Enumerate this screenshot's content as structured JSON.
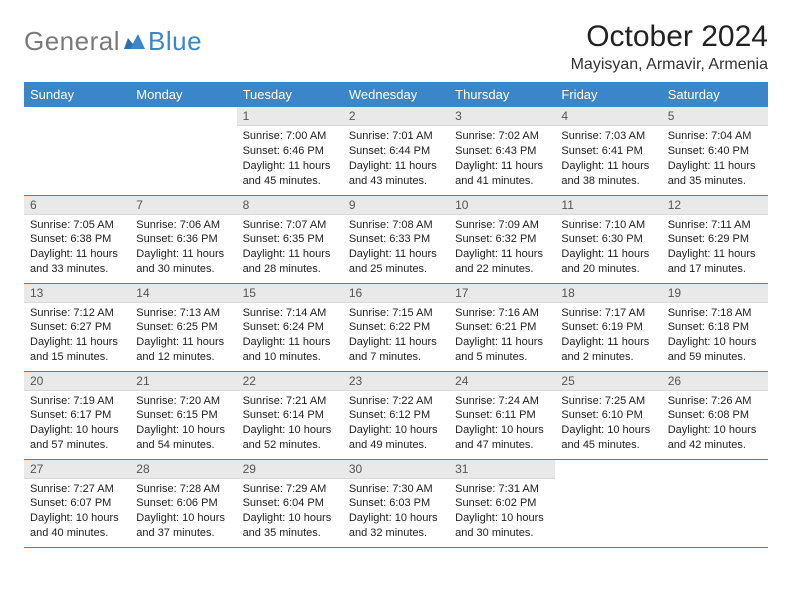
{
  "logo": {
    "gray": "General",
    "blue": "Blue"
  },
  "header": {
    "title": "October 2024",
    "subtitle": "Mayisyan, Armavir, Armenia"
  },
  "colors": {
    "header_bg": "#3a86c8",
    "header_text": "#ffffff",
    "daynum_bg": "#e9e9e9",
    "daynum_text": "#555555",
    "rule": "#3a86c8",
    "body_text": "#222222",
    "page_bg": "#ffffff",
    "logo_gray": "#7a7a7a",
    "logo_blue": "#3a86c8"
  },
  "weekdays": [
    "Sunday",
    "Monday",
    "Tuesday",
    "Wednesday",
    "Thursday",
    "Friday",
    "Saturday"
  ],
  "weeks": [
    [
      null,
      null,
      {
        "n": "1",
        "sr": "Sunrise: 7:00 AM",
        "ss": "Sunset: 6:46 PM",
        "dl": "Daylight: 11 hours and 45 minutes."
      },
      {
        "n": "2",
        "sr": "Sunrise: 7:01 AM",
        "ss": "Sunset: 6:44 PM",
        "dl": "Daylight: 11 hours and 43 minutes."
      },
      {
        "n": "3",
        "sr": "Sunrise: 7:02 AM",
        "ss": "Sunset: 6:43 PM",
        "dl": "Daylight: 11 hours and 41 minutes."
      },
      {
        "n": "4",
        "sr": "Sunrise: 7:03 AM",
        "ss": "Sunset: 6:41 PM",
        "dl": "Daylight: 11 hours and 38 minutes."
      },
      {
        "n": "5",
        "sr": "Sunrise: 7:04 AM",
        "ss": "Sunset: 6:40 PM",
        "dl": "Daylight: 11 hours and 35 minutes."
      }
    ],
    [
      {
        "n": "6",
        "sr": "Sunrise: 7:05 AM",
        "ss": "Sunset: 6:38 PM",
        "dl": "Daylight: 11 hours and 33 minutes."
      },
      {
        "n": "7",
        "sr": "Sunrise: 7:06 AM",
        "ss": "Sunset: 6:36 PM",
        "dl": "Daylight: 11 hours and 30 minutes."
      },
      {
        "n": "8",
        "sr": "Sunrise: 7:07 AM",
        "ss": "Sunset: 6:35 PM",
        "dl": "Daylight: 11 hours and 28 minutes."
      },
      {
        "n": "9",
        "sr": "Sunrise: 7:08 AM",
        "ss": "Sunset: 6:33 PM",
        "dl": "Daylight: 11 hours and 25 minutes."
      },
      {
        "n": "10",
        "sr": "Sunrise: 7:09 AM",
        "ss": "Sunset: 6:32 PM",
        "dl": "Daylight: 11 hours and 22 minutes."
      },
      {
        "n": "11",
        "sr": "Sunrise: 7:10 AM",
        "ss": "Sunset: 6:30 PM",
        "dl": "Daylight: 11 hours and 20 minutes."
      },
      {
        "n": "12",
        "sr": "Sunrise: 7:11 AM",
        "ss": "Sunset: 6:29 PM",
        "dl": "Daylight: 11 hours and 17 minutes."
      }
    ],
    [
      {
        "n": "13",
        "sr": "Sunrise: 7:12 AM",
        "ss": "Sunset: 6:27 PM",
        "dl": "Daylight: 11 hours and 15 minutes."
      },
      {
        "n": "14",
        "sr": "Sunrise: 7:13 AM",
        "ss": "Sunset: 6:25 PM",
        "dl": "Daylight: 11 hours and 12 minutes."
      },
      {
        "n": "15",
        "sr": "Sunrise: 7:14 AM",
        "ss": "Sunset: 6:24 PM",
        "dl": "Daylight: 11 hours and 10 minutes."
      },
      {
        "n": "16",
        "sr": "Sunrise: 7:15 AM",
        "ss": "Sunset: 6:22 PM",
        "dl": "Daylight: 11 hours and 7 minutes."
      },
      {
        "n": "17",
        "sr": "Sunrise: 7:16 AM",
        "ss": "Sunset: 6:21 PM",
        "dl": "Daylight: 11 hours and 5 minutes."
      },
      {
        "n": "18",
        "sr": "Sunrise: 7:17 AM",
        "ss": "Sunset: 6:19 PM",
        "dl": "Daylight: 11 hours and 2 minutes."
      },
      {
        "n": "19",
        "sr": "Sunrise: 7:18 AM",
        "ss": "Sunset: 6:18 PM",
        "dl": "Daylight: 10 hours and 59 minutes."
      }
    ],
    [
      {
        "n": "20",
        "sr": "Sunrise: 7:19 AM",
        "ss": "Sunset: 6:17 PM",
        "dl": "Daylight: 10 hours and 57 minutes."
      },
      {
        "n": "21",
        "sr": "Sunrise: 7:20 AM",
        "ss": "Sunset: 6:15 PM",
        "dl": "Daylight: 10 hours and 54 minutes."
      },
      {
        "n": "22",
        "sr": "Sunrise: 7:21 AM",
        "ss": "Sunset: 6:14 PM",
        "dl": "Daylight: 10 hours and 52 minutes."
      },
      {
        "n": "23",
        "sr": "Sunrise: 7:22 AM",
        "ss": "Sunset: 6:12 PM",
        "dl": "Daylight: 10 hours and 49 minutes."
      },
      {
        "n": "24",
        "sr": "Sunrise: 7:24 AM",
        "ss": "Sunset: 6:11 PM",
        "dl": "Daylight: 10 hours and 47 minutes."
      },
      {
        "n": "25",
        "sr": "Sunrise: 7:25 AM",
        "ss": "Sunset: 6:10 PM",
        "dl": "Daylight: 10 hours and 45 minutes."
      },
      {
        "n": "26",
        "sr": "Sunrise: 7:26 AM",
        "ss": "Sunset: 6:08 PM",
        "dl": "Daylight: 10 hours and 42 minutes."
      }
    ],
    [
      {
        "n": "27",
        "sr": "Sunrise: 7:27 AM",
        "ss": "Sunset: 6:07 PM",
        "dl": "Daylight: 10 hours and 40 minutes."
      },
      {
        "n": "28",
        "sr": "Sunrise: 7:28 AM",
        "ss": "Sunset: 6:06 PM",
        "dl": "Daylight: 10 hours and 37 minutes."
      },
      {
        "n": "29",
        "sr": "Sunrise: 7:29 AM",
        "ss": "Sunset: 6:04 PM",
        "dl": "Daylight: 10 hours and 35 minutes."
      },
      {
        "n": "30",
        "sr": "Sunrise: 7:30 AM",
        "ss": "Sunset: 6:03 PM",
        "dl": "Daylight: 10 hours and 32 minutes."
      },
      {
        "n": "31",
        "sr": "Sunrise: 7:31 AM",
        "ss": "Sunset: 6:02 PM",
        "dl": "Daylight: 10 hours and 30 minutes."
      },
      null,
      null
    ]
  ]
}
